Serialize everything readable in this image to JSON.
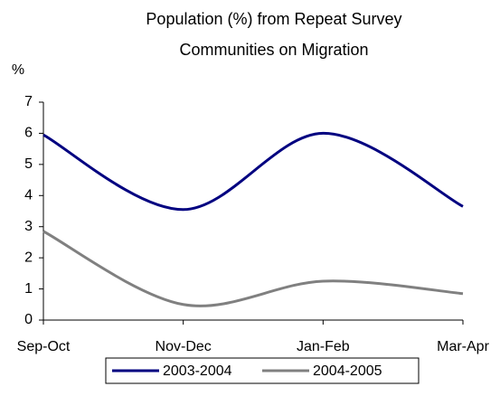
{
  "chart_data": {
    "type": "line",
    "title": [
      "Population (%) from Repeat Survey",
      "Communities on Migration"
    ],
    "y_label": "%",
    "categories": [
      "Sep-Oct",
      "Nov-Dec",
      "Jan-Feb",
      "Mar-Apr"
    ],
    "series": [
      {
        "name": "2003-2004",
        "color": "#000080",
        "values": [
          5.95,
          3.55,
          6.0,
          3.65
        ]
      },
      {
        "name": "2004-2005",
        "color": "#808080",
        "values": [
          2.85,
          0.5,
          1.25,
          0.85
        ]
      }
    ],
    "ylim": [
      0,
      7
    ],
    "yticks": [
      0,
      1,
      2,
      3,
      4,
      5,
      6,
      7
    ],
    "smooth": true,
    "legend": "bottom"
  }
}
